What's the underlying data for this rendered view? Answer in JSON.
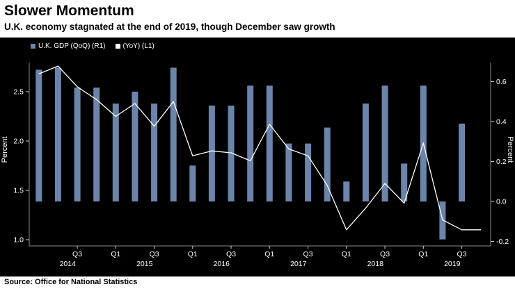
{
  "header": {
    "title": "Slower Momentum",
    "subtitle": "U.K. economy stagnated at the end of 2019, though December saw growth"
  },
  "legend": {
    "qoq_label": "U.K. GDP (QoQ) (R1)",
    "yoy_label": "(YoY) (L1)"
  },
  "footer": {
    "source": "Source: Office for National Statistics"
  },
  "colors": {
    "background": "#000000",
    "bar": "#6d84aa",
    "line": "#ffffff",
    "axis_frame": "#8a8a8a",
    "tick_mark": "#cccccc",
    "tick_text": "#ffffff",
    "header_bg": "#ffffff",
    "header_text": "#000000"
  },
  "chart_data": {
    "type": "bar",
    "subtype": "bar-and-line-dual-axis",
    "title": "Slower Momentum",
    "subtitle": "U.K. economy stagnated at the end of 2019, though December saw growth",
    "categories": [
      "2014 Q1",
      "2014 Q2",
      "2014 Q3",
      "2014 Q4",
      "2015 Q1",
      "2015 Q2",
      "2015 Q3",
      "2015 Q4",
      "2016 Q1",
      "2016 Q2",
      "2016 Q3",
      "2016 Q4",
      "2017 Q1",
      "2017 Q2",
      "2017 Q3",
      "2017 Q4",
      "2018 Q1",
      "2018 Q2",
      "2018 Q3",
      "2018 Q4",
      "2019 Q1",
      "2019 Q2",
      "2019 Q3",
      "2019 Q4"
    ],
    "series": [
      {
        "name": "U.K. GDP (QoQ) (R1)",
        "type": "bar",
        "axis": "right",
        "color": "#6d84aa",
        "values": [
          0.66,
          0.67,
          0.57,
          0.57,
          0.49,
          0.55,
          0.49,
          0.67,
          0.18,
          0.48,
          0.48,
          0.58,
          0.58,
          0.29,
          0.29,
          0.37,
          0.1,
          0.49,
          0.58,
          0.19,
          0.58,
          -0.19,
          0.39,
          0.0
        ]
      },
      {
        "name": "(YoY) (L1)",
        "type": "line",
        "axis": "left",
        "color": "#ffffff",
        "values": [
          2.68,
          2.76,
          2.55,
          2.42,
          2.25,
          2.38,
          2.15,
          2.4,
          1.85,
          1.9,
          1.88,
          1.8,
          2.17,
          1.92,
          1.85,
          1.55,
          1.1,
          1.32,
          1.57,
          1.37,
          1.98,
          1.2,
          1.1,
          1.1
        ]
      }
    ],
    "left_axis": {
      "label": "Percent",
      "tick_values": [
        2.5,
        2.0,
        1.5,
        1.0
      ],
      "tick_labels": [
        "2.5",
        "2.0",
        "1.5",
        "1.0"
      ],
      "range": [
        0.95,
        2.85
      ]
    },
    "right_axis": {
      "label": "Percent",
      "tick_values": [
        0.6,
        0.4,
        0.2,
        0.0,
        -0.2
      ],
      "tick_labels": [
        "0.6",
        "0.4",
        "0.2",
        "0.0",
        "-0.2"
      ],
      "range": [
        -0.25,
        0.7
      ]
    },
    "x_axis": {
      "ticks": [
        {
          "i": 2,
          "label": "Q3"
        },
        {
          "i": 4,
          "label": "Q1"
        },
        {
          "i": 6,
          "label": "Q3"
        },
        {
          "i": 8,
          "label": "Q1"
        },
        {
          "i": 10,
          "label": "Q3"
        },
        {
          "i": 12,
          "label": "Q1"
        },
        {
          "i": 14,
          "label": "Q3"
        },
        {
          "i": 16,
          "label": "Q1"
        },
        {
          "i": 18,
          "label": "Q3"
        },
        {
          "i": 20,
          "label": "Q1"
        },
        {
          "i": 22,
          "label": "Q3"
        }
      ],
      "years": [
        {
          "label": "2014",
          "i": 1.5
        },
        {
          "label": "2015",
          "i": 5.5
        },
        {
          "label": "2016",
          "i": 9.5
        },
        {
          "label": "2017",
          "i": 13.5
        },
        {
          "label": "2018",
          "i": 17.5
        },
        {
          "label": "2019",
          "i": 21.5
        }
      ]
    },
    "grid": false,
    "legend_position": "top-left-inside"
  }
}
